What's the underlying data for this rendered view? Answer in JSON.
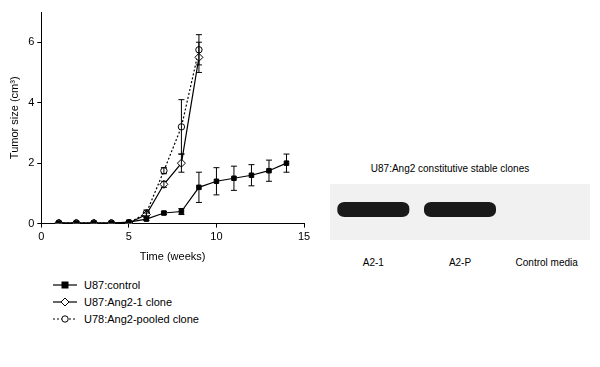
{
  "chart_data": {
    "type": "line",
    "x_label": "Time (weeks)",
    "y_label": "Tumor size (cm³)",
    "xlim": [
      0,
      15
    ],
    "xticks": [
      0,
      5,
      10,
      15
    ],
    "ylim": [
      0,
      7
    ],
    "yticks": [
      0,
      2,
      4,
      6
    ],
    "grid": false,
    "legend": "bottom",
    "series": [
      {
        "name": "U87:control",
        "color": "#000000",
        "marker": "square",
        "line_style": "solid",
        "x": [
          1,
          2,
          3,
          4,
          5,
          6,
          7,
          8,
          9,
          10,
          11,
          12,
          13,
          14
        ],
        "values": [
          0.02,
          0.02,
          0.02,
          0.02,
          0.05,
          0.15,
          0.35,
          0.4,
          1.2,
          1.4,
          1.5,
          1.6,
          1.75,
          2.0
        ],
        "errors": [
          0,
          0,
          0,
          0,
          0,
          0.05,
          0.05,
          0.1,
          0.5,
          0.45,
          0.4,
          0.35,
          0.35,
          0.3
        ]
      },
      {
        "name": "U87:Ang2-1 clone",
        "color": "#000000",
        "marker": "diamond",
        "line_style": "solid",
        "x": [
          1,
          2,
          3,
          4,
          5,
          6,
          7,
          8,
          9
        ],
        "values": [
          0.02,
          0.02,
          0.02,
          0.02,
          0.02,
          0.3,
          1.3,
          2.0,
          5.5
        ],
        "errors": [
          0,
          0,
          0,
          0,
          0,
          0.05,
          0.1,
          0.3,
          0.5
        ]
      },
      {
        "name": "U78:Ang2-pooled clone",
        "color": "#000000",
        "marker": "circle",
        "line_style": "dotted",
        "x": [
          1,
          2,
          3,
          4,
          5,
          6,
          7,
          8,
          9
        ],
        "values": [
          0.02,
          0.02,
          0.02,
          0.02,
          0.02,
          0.35,
          1.75,
          3.2,
          5.75
        ],
        "errors": [
          0,
          0,
          0,
          0,
          0,
          0.1,
          0.1,
          0.9,
          0.5
        ]
      }
    ]
  },
  "blot": {
    "title": "U87:Ang2 constitutive stable clones",
    "lanes": [
      {
        "label": "A2-1",
        "band": true
      },
      {
        "label": "A2-P",
        "band": true
      },
      {
        "label": "Control media",
        "band": false
      }
    ]
  }
}
